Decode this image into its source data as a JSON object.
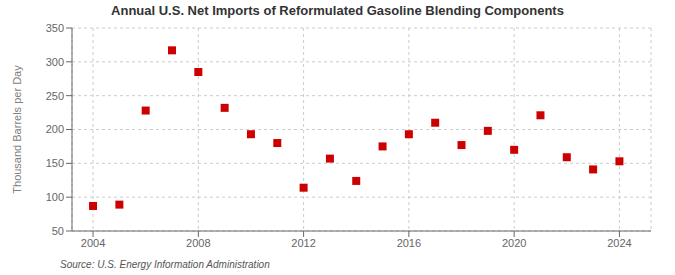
{
  "chart_data": {
    "type": "scatter",
    "title": "Annual U.S. Net Imports of Reformulated Gasoline Blending Components",
    "ylabel": "Thousand Barrels per Day",
    "annotation": "Source: U.S. Energy Information Administration",
    "x": [
      2004,
      2005,
      2006,
      2007,
      2008,
      2009,
      2010,
      2011,
      2012,
      2013,
      2014,
      2015,
      2016,
      2017,
      2018,
      2019,
      2020,
      2021,
      2022,
      2023,
      2024
    ],
    "values": [
      87,
      89,
      228,
      317,
      285,
      232,
      193,
      180,
      114,
      157,
      124,
      175,
      193,
      210,
      177,
      198,
      170,
      221,
      159,
      141,
      153
    ],
    "color": "#CC0000",
    "marker": "square",
    "xlim": [
      2003.2,
      2025.2
    ],
    "xticks": [
      2004,
      2008,
      2012,
      2016,
      2020,
      2024
    ],
    "ylim": [
      50,
      350
    ],
    "yticks": [
      50,
      100,
      150,
      200,
      250,
      300,
      350
    ],
    "grid": true
  }
}
